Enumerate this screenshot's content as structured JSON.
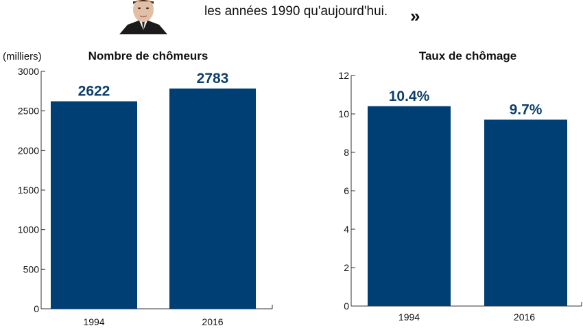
{
  "header": {
    "quote_text": "les années 1990 qu'aujourd'hui.",
    "quote_mark": "»"
  },
  "colors": {
    "bar": "#003f73",
    "value_label": "#0d3f6f"
  },
  "chart_data": [
    {
      "type": "bar",
      "title": "Nombre de chômeurs",
      "ylabel": "(milliers)",
      "categories": [
        "1994",
        "2016"
      ],
      "values": [
        2622,
        2783
      ],
      "value_labels": [
        "2622",
        "2783"
      ],
      "ylim": [
        0,
        3000
      ],
      "yticks": [
        0,
        500,
        1000,
        1500,
        2000,
        2500,
        3000
      ],
      "ytick_labels": [
        "0",
        "500",
        "1000",
        "1500",
        "2000",
        "2500",
        "3000"
      ],
      "grid": false
    },
    {
      "type": "bar",
      "title": "Taux de chômage",
      "ylabel": "",
      "categories": [
        "1994",
        "2016"
      ],
      "values": [
        10.4,
        9.7
      ],
      "value_labels": [
        "10.4%",
        "9.7%"
      ],
      "ylim": [
        0,
        12
      ],
      "yticks": [
        0,
        2,
        4,
        6,
        8,
        10,
        12
      ],
      "ytick_labels": [
        "0",
        "2",
        "4",
        "6",
        "8",
        "10",
        "12"
      ],
      "grid": false
    }
  ]
}
